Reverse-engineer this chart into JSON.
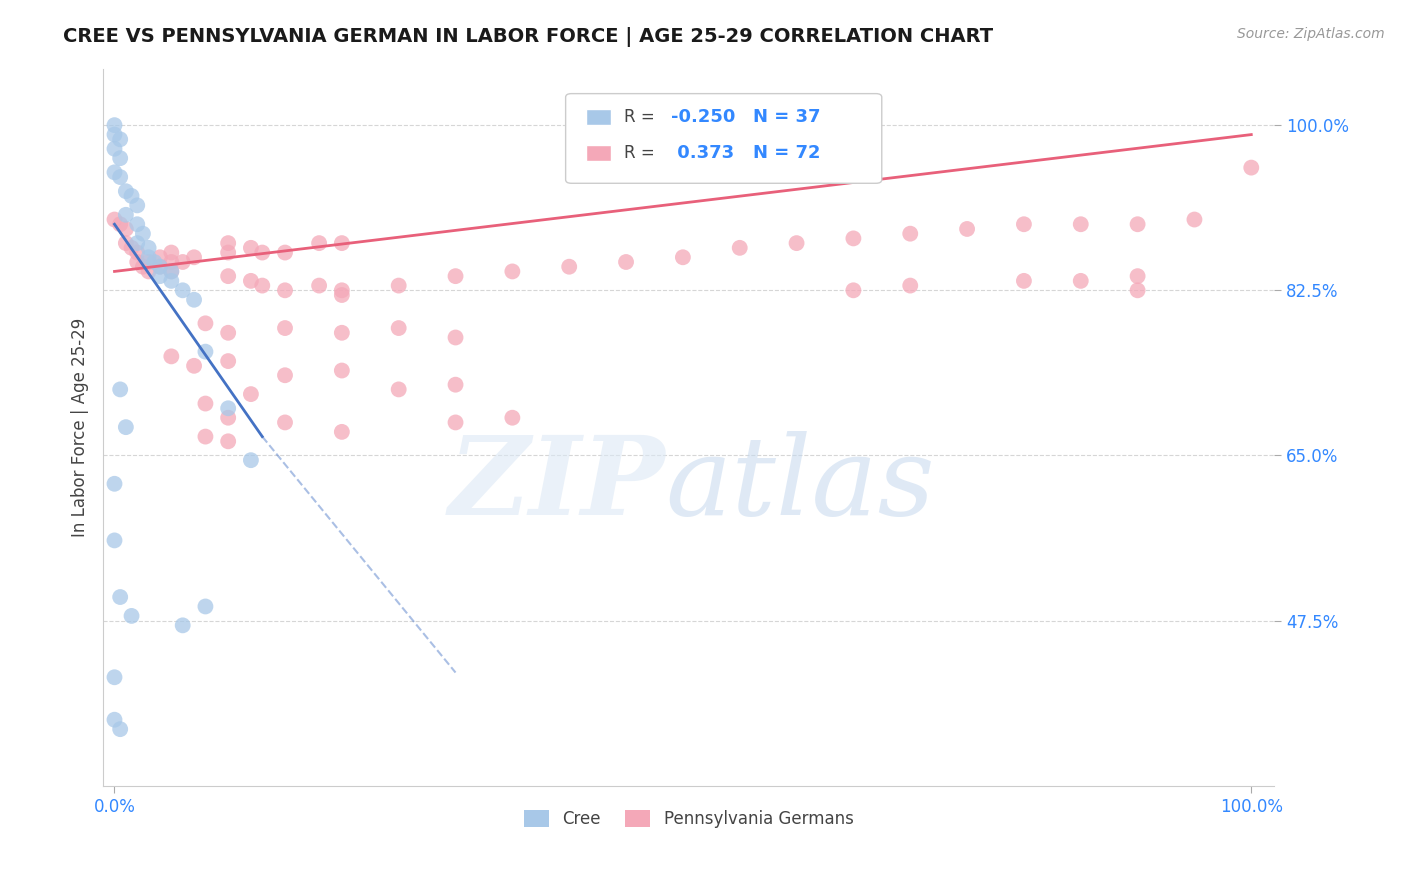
{
  "title": "CREE VS PENNSYLVANIA GERMAN IN LABOR FORCE | AGE 25-29 CORRELATION CHART",
  "source": "Source: ZipAtlas.com",
  "ylabel": "In Labor Force | Age 25-29",
  "background_color": "#ffffff",
  "cree_color": "#a8c8e8",
  "penn_color": "#f4a8b8",
  "cree_line_color": "#4472c4",
  "penn_line_color": "#e8607a",
  "grid_color": "#cccccc",
  "xlim": [
    0.0,
    1.0
  ],
  "ylim": [
    0.3,
    1.06
  ],
  "yticks": [
    1.0,
    0.825,
    0.65,
    0.475
  ],
  "ytick_labels": [
    "100.0%",
    "82.5%",
    "65.0%",
    "47.5%"
  ],
  "xticks": [
    0.0,
    1.0
  ],
  "xtick_labels": [
    "0.0%",
    "100.0%"
  ],
  "cree_points": [
    [
      0.0,
      1.0
    ],
    [
      0.0,
      0.975
    ],
    [
      0.005,
      0.965
    ],
    [
      0.0,
      0.95
    ],
    [
      0.005,
      0.945
    ],
    [
      0.01,
      0.93
    ],
    [
      0.015,
      0.925
    ],
    [
      0.02,
      0.915
    ],
    [
      0.01,
      0.905
    ],
    [
      0.02,
      0.895
    ],
    [
      0.025,
      0.885
    ],
    [
      0.02,
      0.875
    ],
    [
      0.03,
      0.87
    ],
    [
      0.03,
      0.86
    ],
    [
      0.035,
      0.855
    ],
    [
      0.04,
      0.85
    ],
    [
      0.04,
      0.84
    ],
    [
      0.05,
      0.845
    ],
    [
      0.05,
      0.835
    ],
    [
      0.06,
      0.825
    ],
    [
      0.07,
      0.815
    ],
    [
      0.08,
      0.76
    ],
    [
      0.1,
      0.7
    ],
    [
      0.12,
      0.645
    ],
    [
      0.005,
      0.72
    ],
    [
      0.01,
      0.68
    ],
    [
      0.0,
      0.62
    ],
    [
      0.0,
      0.56
    ],
    [
      0.005,
      0.5
    ],
    [
      0.015,
      0.48
    ],
    [
      0.0,
      0.415
    ],
    [
      0.0,
      0.37
    ],
    [
      0.005,
      0.36
    ],
    [
      0.06,
      0.47
    ],
    [
      0.08,
      0.49
    ],
    [
      0.0,
      0.99
    ],
    [
      0.005,
      0.985
    ]
  ],
  "penn_points": [
    [
      0.0,
      0.9
    ],
    [
      0.005,
      0.895
    ],
    [
      0.01,
      0.89
    ],
    [
      0.01,
      0.875
    ],
    [
      0.015,
      0.87
    ],
    [
      0.02,
      0.865
    ],
    [
      0.02,
      0.855
    ],
    [
      0.025,
      0.85
    ],
    [
      0.03,
      0.845
    ],
    [
      0.03,
      0.855
    ],
    [
      0.04,
      0.86
    ],
    [
      0.04,
      0.85
    ],
    [
      0.05,
      0.865
    ],
    [
      0.05,
      0.855
    ],
    [
      0.05,
      0.845
    ],
    [
      0.06,
      0.855
    ],
    [
      0.07,
      0.86
    ],
    [
      0.1,
      0.875
    ],
    [
      0.1,
      0.865
    ],
    [
      0.12,
      0.87
    ],
    [
      0.13,
      0.865
    ],
    [
      0.15,
      0.865
    ],
    [
      0.18,
      0.875
    ],
    [
      0.2,
      0.875
    ],
    [
      0.1,
      0.84
    ],
    [
      0.12,
      0.835
    ],
    [
      0.13,
      0.83
    ],
    [
      0.15,
      0.825
    ],
    [
      0.18,
      0.83
    ],
    [
      0.2,
      0.825
    ],
    [
      0.2,
      0.82
    ],
    [
      0.25,
      0.83
    ],
    [
      0.3,
      0.84
    ],
    [
      0.35,
      0.845
    ],
    [
      0.4,
      0.85
    ],
    [
      0.45,
      0.855
    ],
    [
      0.5,
      0.86
    ],
    [
      0.55,
      0.87
    ],
    [
      0.6,
      0.875
    ],
    [
      0.65,
      0.88
    ],
    [
      0.65,
      0.825
    ],
    [
      0.7,
      0.885
    ],
    [
      0.7,
      0.83
    ],
    [
      0.75,
      0.89
    ],
    [
      0.8,
      0.895
    ],
    [
      0.8,
      0.835
    ],
    [
      0.85,
      0.895
    ],
    [
      0.85,
      0.835
    ],
    [
      0.9,
      0.895
    ],
    [
      0.9,
      0.84
    ],
    [
      0.9,
      0.825
    ],
    [
      0.95,
      0.9
    ],
    [
      1.0,
      0.955
    ],
    [
      0.08,
      0.79
    ],
    [
      0.1,
      0.78
    ],
    [
      0.15,
      0.785
    ],
    [
      0.2,
      0.78
    ],
    [
      0.25,
      0.785
    ],
    [
      0.3,
      0.775
    ],
    [
      0.05,
      0.755
    ],
    [
      0.07,
      0.745
    ],
    [
      0.1,
      0.75
    ],
    [
      0.15,
      0.735
    ],
    [
      0.2,
      0.74
    ],
    [
      0.08,
      0.705
    ],
    [
      0.12,
      0.715
    ],
    [
      0.25,
      0.72
    ],
    [
      0.3,
      0.725
    ],
    [
      0.1,
      0.69
    ],
    [
      0.15,
      0.685
    ],
    [
      0.2,
      0.675
    ],
    [
      0.3,
      0.685
    ],
    [
      0.35,
      0.69
    ],
    [
      0.08,
      0.67
    ],
    [
      0.1,
      0.665
    ]
  ],
  "penn_line": {
    "x0": 0.0,
    "y0": 0.845,
    "x1": 1.0,
    "y1": 0.99
  },
  "cree_solid_line": {
    "x0": 0.0,
    "y0": 0.895,
    "x1": 0.13,
    "y1": 0.67
  },
  "cree_dash_line": {
    "x0": 0.13,
    "y0": 0.67,
    "x1": 0.3,
    "y1": 0.42
  }
}
